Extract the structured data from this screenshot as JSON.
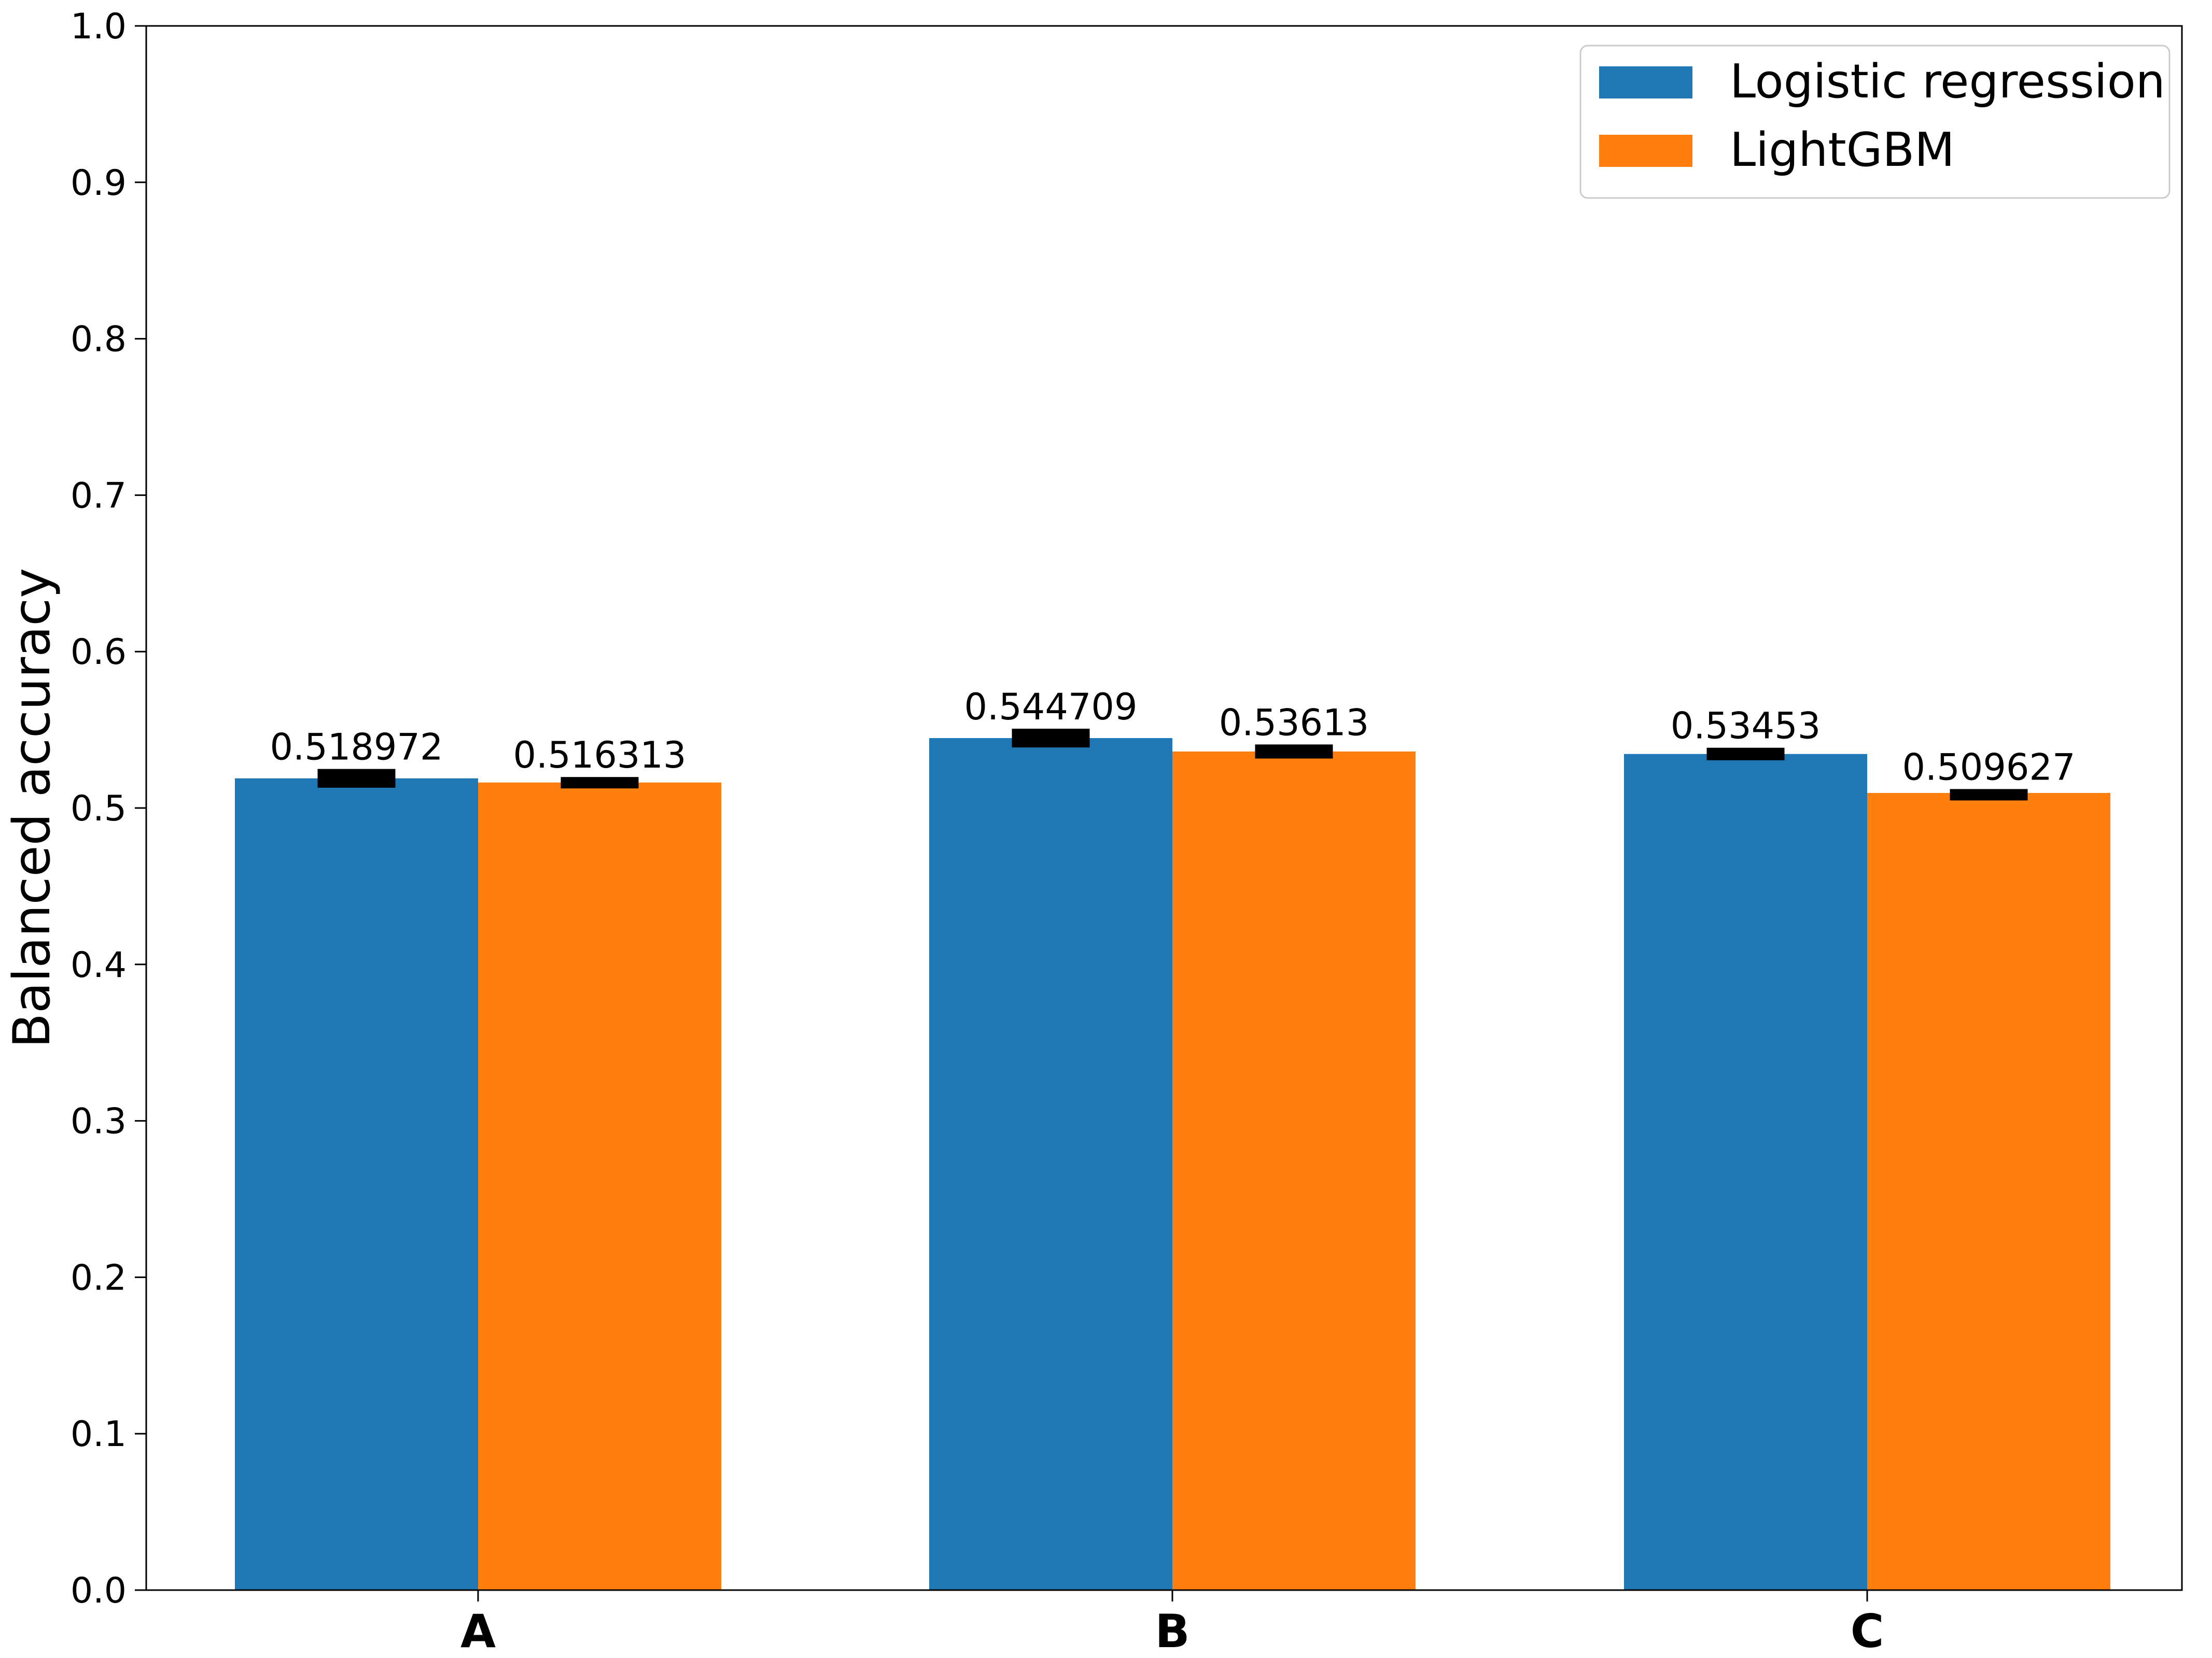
{
  "chart_data": {
    "type": "bar",
    "categories": [
      "A",
      "B",
      "C"
    ],
    "series": [
      {
        "name": "Logistic regression",
        "color": "#1f77b4",
        "values": [
          0.518972,
          0.544709,
          0.53453
        ],
        "value_labels": [
          "0.518972",
          "0.544709",
          "0.53453"
        ],
        "error": [
          0.006,
          0.006,
          0.004
        ]
      },
      {
        "name": "LightGBM",
        "color": "#ff7f0e",
        "values": [
          0.516313,
          0.53613,
          0.509627
        ],
        "value_labels": [
          "0.516313",
          "0.53613",
          "0.509627"
        ],
        "error": [
          0.0035,
          0.0045,
          0.0025
        ]
      }
    ],
    "title": "",
    "xlabel": "",
    "ylabel": "Balanced accuracy",
    "ylim": [
      0,
      1.0
    ],
    "yticks": [
      0.0,
      0.1,
      0.2,
      0.3,
      0.4,
      0.5,
      0.6,
      0.7,
      0.8,
      0.9,
      1.0
    ],
    "ytick_labels": [
      "0.0",
      "0.1",
      "0.2",
      "0.3",
      "0.4",
      "0.5",
      "0.6",
      "0.7",
      "0.8",
      "0.9",
      "1.0"
    ],
    "grid": false,
    "legend_position": "top-right"
  }
}
